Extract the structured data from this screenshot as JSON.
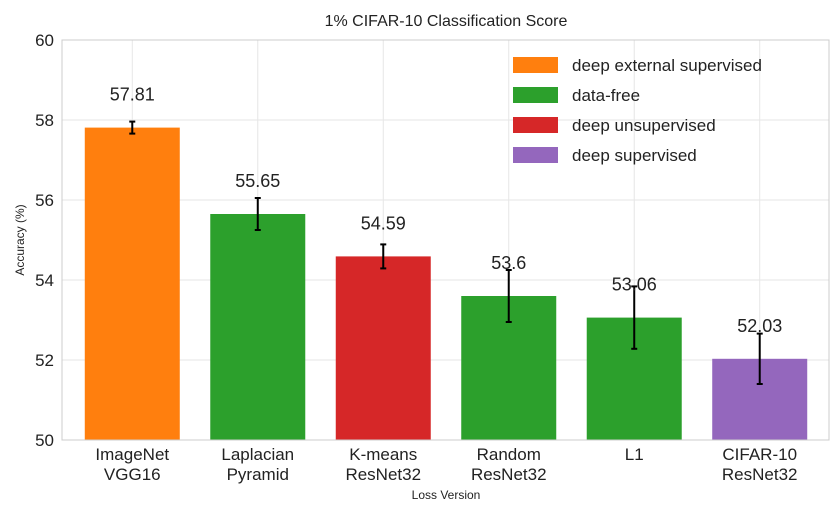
{
  "chart_data": {
    "type": "bar",
    "title": "1% CIFAR-10 Classification Score",
    "xlabel": "Loss Version",
    "ylabel": "Accuracy (%)",
    "ylim": [
      50,
      60
    ],
    "yticks": [
      50,
      52,
      54,
      56,
      58,
      60
    ],
    "grid": true,
    "legend_position": "top-right",
    "categories": [
      [
        "ImageNet",
        "VGG16"
      ],
      [
        "Laplacian",
        "Pyramid"
      ],
      [
        "K-means",
        "ResNet32"
      ],
      [
        "Random",
        "ResNet32"
      ],
      [
        "L1"
      ],
      [
        "CIFAR-10",
        "ResNet32"
      ]
    ],
    "values": [
      57.81,
      55.65,
      54.59,
      53.6,
      53.06,
      52.03
    ],
    "value_labels": [
      "57.81",
      "55.65",
      "54.59",
      "53.6",
      "53.06",
      "52.03"
    ],
    "errors": [
      0.15,
      0.4,
      0.3,
      0.65,
      0.78,
      0.63
    ],
    "groups": [
      "deep external supervised",
      "data-free",
      "deep unsupervised",
      "data-free",
      "data-free",
      "deep supervised"
    ],
    "legend": [
      {
        "label": "deep external supervised",
        "color": "#ff7f0e"
      },
      {
        "label": "data-free",
        "color": "#2ca02c"
      },
      {
        "label": "deep unsupervised",
        "color": "#d62728"
      },
      {
        "label": "deep supervised",
        "color": "#9467bd"
      }
    ]
  }
}
